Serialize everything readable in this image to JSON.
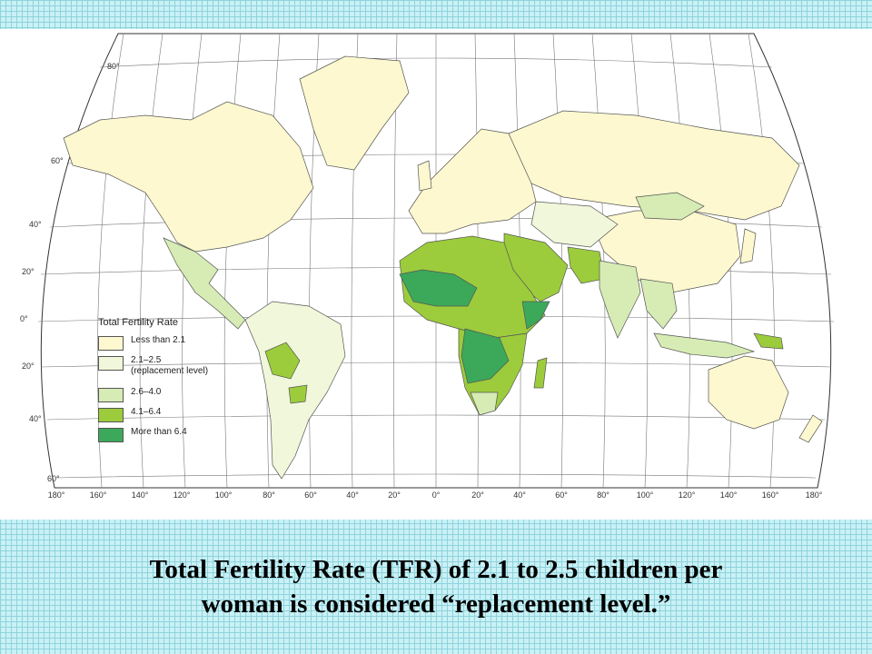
{
  "legend": {
    "title": "Total Fertility Rate",
    "items": [
      {
        "label": "Less than 2.1",
        "note": "",
        "color": "#fdf8cf"
      },
      {
        "label": "2.1–2.5",
        "note": "(replacement level)",
        "color": "#f1f7da"
      },
      {
        "label": "2.6–4.0",
        "note": "",
        "color": "#d6ecb4"
      },
      {
        "label": "4.1–6.4",
        "note": "",
        "color": "#9ccc3c"
      },
      {
        "label": "More than 6.4",
        "note": "",
        "color": "#3ca85a"
      }
    ]
  },
  "latitude_labels": [
    "80°",
    "60°",
    "40°",
    "20°",
    "0°",
    "20°",
    "40°",
    "60°"
  ],
  "longitude_labels": [
    "180°",
    "160°",
    "140°",
    "120°",
    "100°",
    "80°",
    "60°",
    "40°",
    "20°",
    "0°",
    "20°",
    "40°",
    "60°",
    "80°",
    "100°",
    "120°",
    "140°",
    "160°",
    "180°"
  ],
  "caption": {
    "line1": "Total Fertility Rate (TFR) of 2.1 to 2.5 children per",
    "line2": "woman is considered “replacement level.”"
  }
}
